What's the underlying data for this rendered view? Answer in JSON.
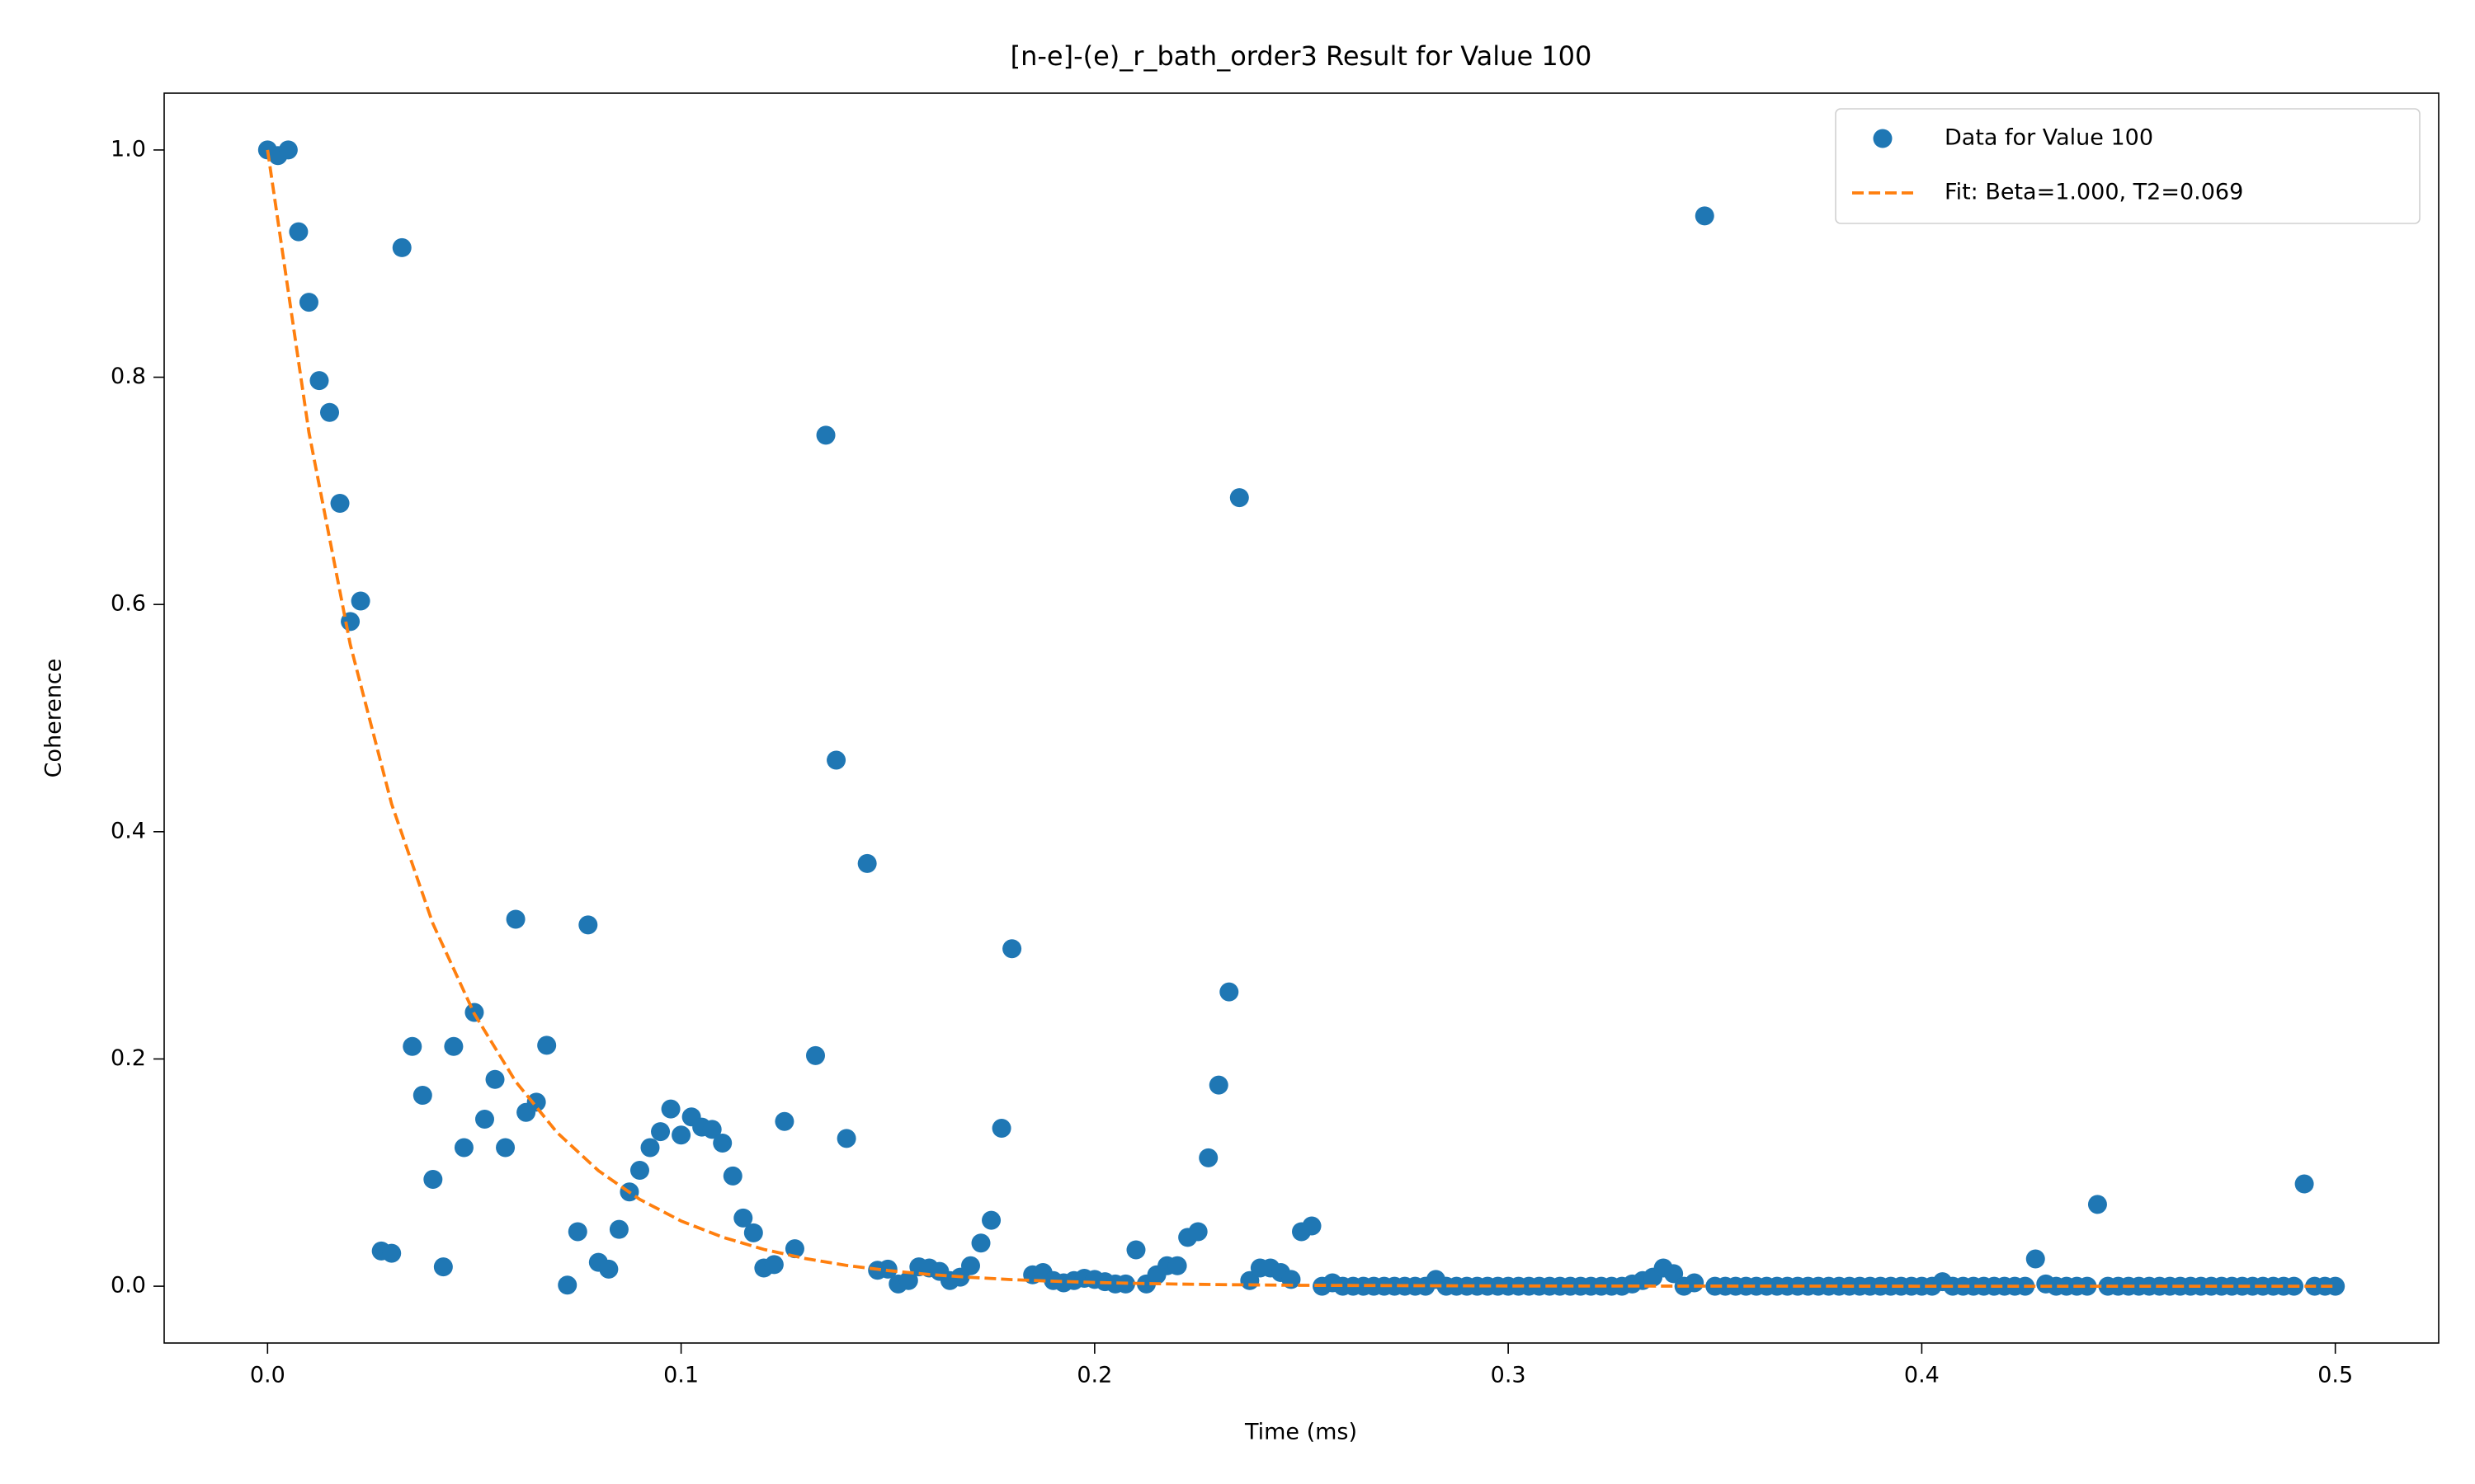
{
  "chart_data": {
    "type": "scatter",
    "title": "[n-e]-(e)_r_bath_order3 Result for Value 100",
    "x_label": "Time (ms)",
    "y_label": "Coherence",
    "xlim": [
      -0.025,
      0.525
    ],
    "ylim": [
      -0.05,
      1.05
    ],
    "xticks": [
      {
        "value": 0,
        "label": "0.0"
      },
      0.1,
      0.2,
      0.3,
      0.4,
      0.5
    ],
    "yticks": [
      {
        "value": 0,
        "label": "0.0"
      },
      0.2,
      0.4,
      0.6,
      0.8,
      {
        "value": 1,
        "label": "1.0"
      }
    ],
    "legend": "upper right",
    "series": [
      {
        "name": "Data for Value 100",
        "type": "scatter",
        "color": "#1f77b4",
        "x": [
          0,
          0.0025,
          0.005,
          0.0075,
          0.01,
          0.0125,
          0.015,
          0.0175,
          0.02,
          0.0225,
          0.0275,
          0.03,
          0.0325,
          0.035,
          0.0375,
          0.04,
          0.0425,
          0.045,
          0.0475,
          0.05,
          0.0525,
          0.055,
          0.0575,
          0.06,
          0.0625,
          0.065,
          0.0675,
          0.0725,
          0.075,
          0.0775,
          0.08,
          0.0825,
          0.085,
          0.0875,
          0.09,
          0.0925,
          0.095,
          0.0975,
          0.1,
          0.1025,
          0.105,
          0.1075,
          0.11,
          0.1125,
          0.115,
          0.1175,
          0.12,
          0.1225,
          0.125,
          0.1275,
          0.1325,
          0.135,
          0.1375,
          0.14,
          0.145,
          0.1475,
          0.15,
          0.1525,
          0.155,
          0.1575,
          0.16,
          0.1625,
          0.165,
          0.1675,
          0.17,
          0.1725,
          0.175,
          0.1775,
          0.18,
          0.185,
          0.1875,
          0.19,
          0.1925,
          0.195,
          0.1975,
          0.2,
          0.2025,
          0.205,
          0.2075,
          0.21,
          0.2125,
          0.215,
          0.2175,
          0.22,
          0.2225,
          0.225,
          0.2275,
          0.23,
          0.2325,
          0.235,
          0.2375,
          0.24,
          0.2425,
          0.245,
          0.2475,
          0.25,
          0.2525,
          0.255,
          0.2575,
          0.26,
          0.2625,
          0.265,
          0.2675,
          0.27,
          0.2725,
          0.275,
          0.2775,
          0.28,
          0.2825,
          0.285,
          0.2875,
          0.29,
          0.2925,
          0.295,
          0.2975,
          0.3,
          0.3025,
          0.305,
          0.3075,
          0.31,
          0.3125,
          0.315,
          0.3175,
          0.32,
          0.3225,
          0.325,
          0.3275,
          0.33,
          0.3325,
          0.335,
          0.3375,
          0.34,
          0.3425,
          0.345,
          0.3475,
          0.35,
          0.3525,
          0.355,
          0.3575,
          0.36,
          0.3625,
          0.365,
          0.3675,
          0.37,
          0.3725,
          0.375,
          0.3775,
          0.38,
          0.3825,
          0.385,
          0.3875,
          0.39,
          0.3925,
          0.395,
          0.3975,
          0.4,
          0.4025,
          0.405,
          0.4075,
          0.41,
          0.4125,
          0.415,
          0.4175,
          0.42,
          0.4225,
          0.425,
          0.4275,
          0.43,
          0.4325,
          0.435,
          0.4375,
          0.44,
          0.4425,
          0.445,
          0.4475,
          0.45,
          0.4525,
          0.455,
          0.4575,
          0.46,
          0.4625,
          0.465,
          0.4675,
          0.47,
          0.4725,
          0.475,
          0.4775,
          0.48,
          0.4825,
          0.485,
          0.4875,
          0.49,
          0.4925,
          0.495,
          0.4975,
          0.5
        ],
        "values": [
          1.0,
          0.995,
          1.0,
          0.928,
          0.866,
          0.797,
          0.769,
          0.689,
          0.585,
          0.603,
          0.031,
          0.029,
          0.914,
          0.211,
          0.168,
          0.094,
          0.017,
          0.211,
          0.122,
          0.241,
          0.147,
          0.182,
          0.122,
          0.323,
          0.153,
          0.162,
          0.212,
          0.001,
          0.048,
          0.318,
          0.021,
          0.015,
          0.05,
          0.083,
          0.102,
          0.122,
          0.136,
          0.156,
          0.133,
          0.149,
          0.14,
          0.138,
          0.126,
          0.097,
          0.06,
          0.047,
          0.016,
          0.019,
          0.145,
          0.033,
          0.203,
          0.749,
          0.463,
          0.13,
          0.372,
          0.014,
          0.015,
          0.002,
          0.005,
          0.017,
          0.016,
          0.013,
          0.005,
          0.008,
          0.018,
          0.038,
          0.058,
          0.139,
          0.297,
          0.01,
          0.012,
          0.005,
          0.003,
          0.005,
          0.007,
          0.006,
          0.004,
          0.002,
          0.002,
          0.032,
          0.002,
          0.01,
          0.018,
          0.018,
          0.043,
          0.048,
          0.113,
          0.177,
          0.259,
          0.694,
          0.005,
          0.016,
          0.016,
          0.012,
          0.006,
          0.048,
          0.053,
          0,
          0.003,
          0,
          0,
          0,
          0,
          0,
          0,
          0,
          0,
          0,
          0.006,
          0,
          0,
          0,
          0,
          0,
          0,
          0,
          0,
          0,
          0,
          0,
          0,
          0,
          0,
          0,
          0,
          0,
          0,
          0.002,
          0.005,
          0.008,
          0.016,
          0.011,
          0,
          0.003,
          0.942,
          0,
          0,
          0,
          0,
          0,
          0,
          0,
          0,
          0,
          0,
          0,
          0,
          0,
          0,
          0,
          0,
          0,
          0,
          0,
          0,
          0,
          0,
          0.004,
          0,
          0,
          0,
          0,
          0,
          0,
          0,
          0,
          0.024,
          0.002,
          0,
          0,
          0,
          0,
          0.072,
          0,
          0,
          0,
          0,
          0,
          0,
          0,
          0,
          0,
          0,
          0,
          0,
          0,
          0,
          0,
          0,
          0,
          0,
          0,
          0.09,
          0,
          0,
          0
        ]
      },
      {
        "name": "Fit: Beta=1.000, T2=0.069",
        "type": "line",
        "color": "#ff7f0e",
        "dash": true,
        "x": [
          0,
          0.01,
          0.02,
          0.03,
          0.04,
          0.05,
          0.06,
          0.07,
          0.08,
          0.09,
          0.1,
          0.11,
          0.12,
          0.13,
          0.14,
          0.15,
          0.16,
          0.17,
          0.18,
          0.19,
          0.2,
          0.21,
          0.22,
          0.23,
          0.24,
          0.25,
          0.3,
          0.4,
          0.5
        ],
        "values": [
          1,
          0.7515,
          0.5647,
          0.4244,
          0.3189,
          0.2397,
          0.1801,
          0.1353,
          0.1017,
          0.0764,
          0.0574,
          0.0432,
          0.0324,
          0.0244,
          0.0183,
          0.0138,
          0.0103,
          0.0078,
          0.0058,
          0.0044,
          0.0033,
          0.0025,
          0.0019,
          0.0014,
          0.0011,
          0.0008,
          0.0002,
          0,
          0
        ]
      }
    ]
  }
}
